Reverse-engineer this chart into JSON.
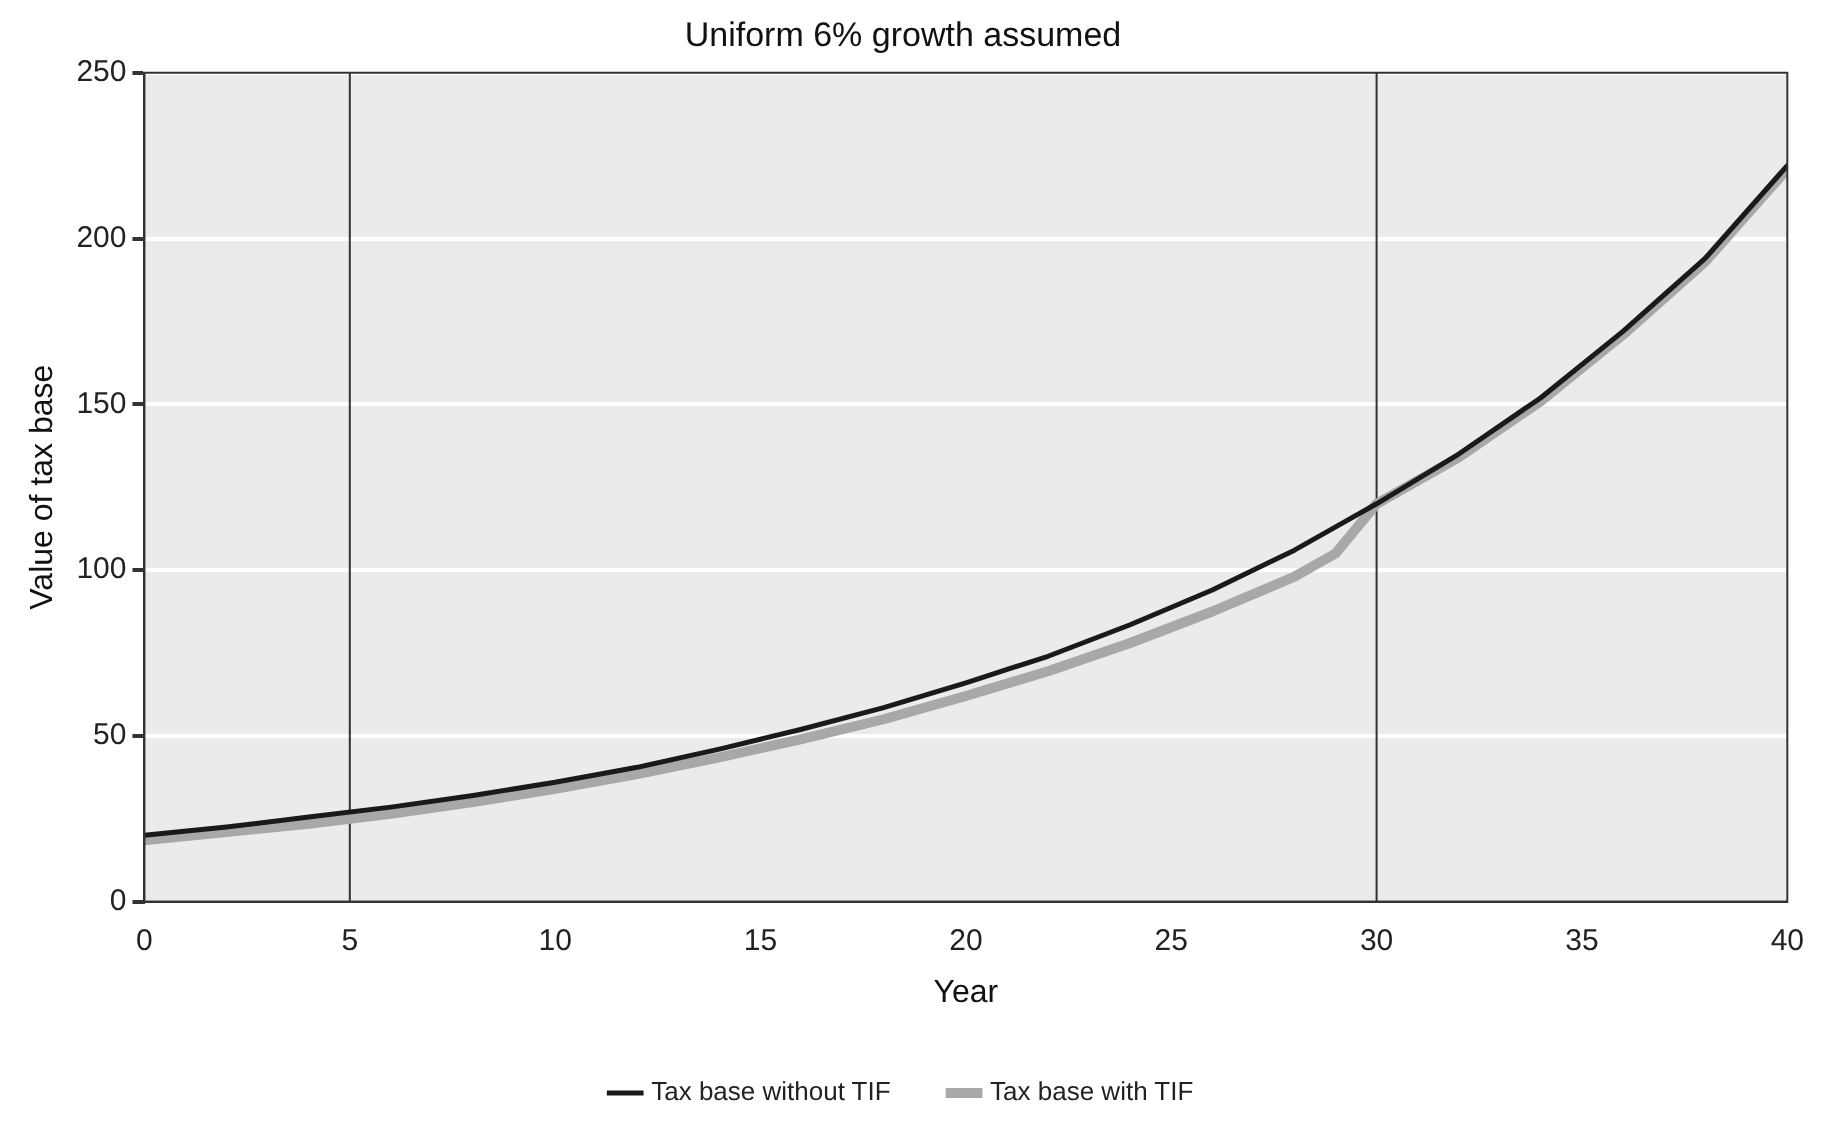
{
  "chart_data": {
    "type": "line",
    "title": "Uniform 6% growth assumed",
    "xlabel": "Year",
    "ylabel": "Value of tax base",
    "xlim": [
      0,
      40
    ],
    "xticks": [
      0,
      5,
      10,
      15,
      20,
      25,
      30,
      35,
      40
    ],
    "ylim": [
      0,
      250
    ],
    "yticks": [
      0,
      50,
      100,
      150,
      200,
      250
    ],
    "grid": "y",
    "legend": "bottom",
    "marker": "none",
    "series": [
      {
        "name": "Tax base without TIF",
        "color": "#1a1a1a",
        "x": [
          0,
          2,
          4,
          6,
          8,
          10,
          12,
          14,
          16,
          18,
          20,
          22,
          24,
          26,
          28,
          30,
          32,
          34,
          36,
          38,
          40
        ],
        "values": [
          20,
          22.5,
          25.5,
          28.5,
          32,
          36,
          40.5,
          46,
          52,
          58.5,
          66,
          74,
          83.5,
          94,
          106,
          120,
          135,
          152,
          172,
          194,
          222
        ]
      },
      {
        "name": "Tax base with TIF",
        "color": "#a7a8aa",
        "x": [
          0,
          2,
          4,
          6,
          8,
          10,
          12,
          14,
          16,
          18,
          20,
          22,
          24,
          26,
          28,
          29,
          30,
          32,
          34,
          36,
          38,
          40
        ],
        "values": [
          18.5,
          21,
          23.5,
          26.5,
          30,
          34,
          38.5,
          43.5,
          49,
          55,
          62,
          69.5,
          78,
          87.5,
          98,
          105,
          120,
          134,
          151,
          171,
          193,
          221
        ]
      }
    ],
    "ref_lines": [
      {
        "axis": "x",
        "value": 5,
        "color": "#333333"
      },
      {
        "axis": "x",
        "value": 30,
        "color": "#333333"
      }
    ]
  }
}
